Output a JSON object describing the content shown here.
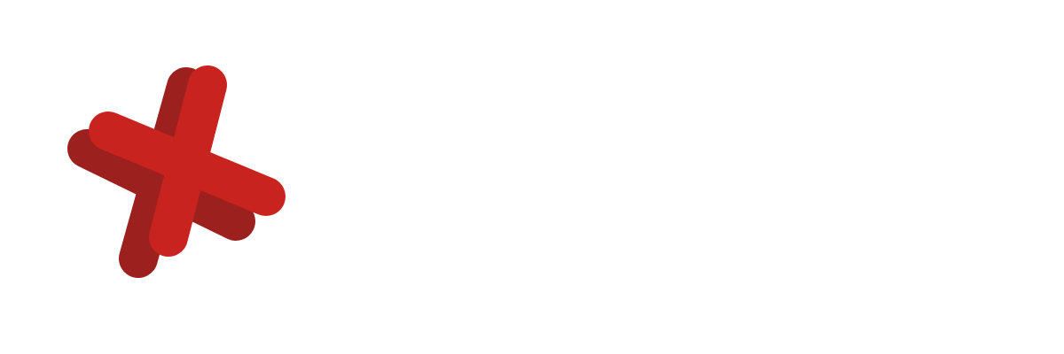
{
  "logo": {
    "icon": "red-x-mark-icon",
    "colors": {
      "front": "#c8231f",
      "side": "#9b201e",
      "background": "#ffffff"
    }
  }
}
